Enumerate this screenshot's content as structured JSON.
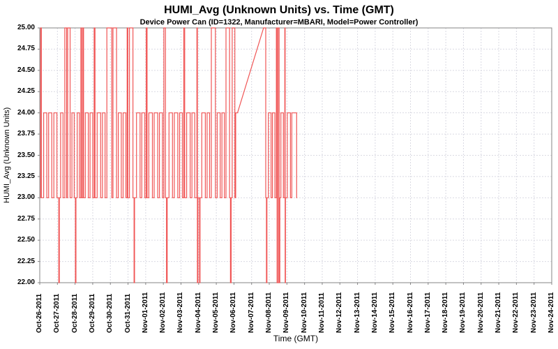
{
  "chart_data": {
    "type": "line",
    "title": "HUMI_Avg (Unknown Units) vs. Time (GMT)",
    "subtitle": "Device Power Can (ID=1322, Manufacturer=MBARI, Model=Power Controller)",
    "xlabel": "Time (GMT)",
    "ylabel": "HUMI_Avg (Unknown Units)",
    "legend": "none",
    "grid": {
      "on": true,
      "color": "#d9d9e2",
      "dash": "2,2"
    },
    "frame_color": "#848484",
    "tick_color": "#848484",
    "text_color": "#000000",
    "background": "#ffffff",
    "ylim": [
      22,
      25
    ],
    "x_range_days": [
      0,
      29
    ],
    "y_tick_values": [
      22,
      22.25,
      22.5,
      22.75,
      23,
      23.25,
      23.5,
      23.75,
      24,
      24.25,
      24.5,
      24.75,
      25
    ],
    "y_tick_labels": [
      "22.00",
      "22.25",
      "22.50",
      "22.75",
      "23.00",
      "23.25",
      "23.50",
      "23.75",
      "24.00",
      "24.25",
      "24.50",
      "24.75",
      "25.00"
    ],
    "x_ticks": [
      "Oct-26-2011",
      "Oct-27-2011",
      "Oct-28-2011",
      "Oct-29-2011",
      "Oct-30-2011",
      "Oct-31-2011",
      "Nov-01-2011",
      "Nov-02-2011",
      "Nov-03-2011",
      "Nov-04-2011",
      "Nov-05-2011",
      "Nov-06-2011",
      "Nov-07-2011",
      "Nov-08-2011",
      "Nov-09-2011",
      "Nov-10-2011",
      "Nov-11-2011",
      "Nov-12-2011",
      "Nov-13-2011",
      "Nov-14-2011",
      "Nov-15-2011",
      "Nov-16-2011",
      "Nov-17-2011",
      "Nov-18-2011",
      "Nov-19-2011",
      "Nov-20-2011",
      "Nov-21-2011",
      "Nov-22-2011",
      "Nov-23-2011",
      "Nov-24-2011"
    ],
    "series": [
      {
        "name": "HUMI_Avg",
        "color": "#f05555",
        "points": [
          [
            0.03,
            23
          ],
          [
            0.05,
            23
          ],
          [
            0.05,
            25
          ],
          [
            0.09,
            25
          ],
          [
            0.09,
            23
          ],
          [
            0.22,
            23
          ],
          [
            0.22,
            24
          ],
          [
            0.4,
            24
          ],
          [
            0.4,
            23
          ],
          [
            0.5,
            23
          ],
          [
            0.5,
            24
          ],
          [
            0.68,
            24
          ],
          [
            0.68,
            23
          ],
          [
            0.8,
            23
          ],
          [
            0.8,
            24
          ],
          [
            0.97,
            24
          ],
          [
            0.97,
            23
          ],
          [
            1.08,
            23
          ],
          [
            1.08,
            22
          ],
          [
            1.11,
            22
          ],
          [
            1.11,
            23
          ],
          [
            1.18,
            23
          ],
          [
            1.18,
            24
          ],
          [
            1.32,
            24
          ],
          [
            1.32,
            23
          ],
          [
            1.42,
            23
          ],
          [
            1.42,
            25
          ],
          [
            1.52,
            25
          ],
          [
            1.52,
            23
          ],
          [
            1.58,
            23
          ],
          [
            1.58,
            25
          ],
          [
            1.72,
            25
          ],
          [
            1.72,
            23
          ],
          [
            1.82,
            23
          ],
          [
            1.82,
            24
          ],
          [
            1.95,
            24
          ],
          [
            1.95,
            23
          ],
          [
            2.02,
            23
          ],
          [
            2.02,
            22
          ],
          [
            2.05,
            22
          ],
          [
            2.05,
            23
          ],
          [
            2.12,
            23
          ],
          [
            2.12,
            24
          ],
          [
            2.25,
            24
          ],
          [
            2.25,
            23
          ],
          [
            2.33,
            23
          ],
          [
            2.33,
            25
          ],
          [
            2.37,
            25
          ],
          [
            2.37,
            23
          ],
          [
            2.44,
            23
          ],
          [
            2.44,
            25
          ],
          [
            2.48,
            25
          ],
          [
            2.48,
            23
          ],
          [
            2.58,
            23
          ],
          [
            2.58,
            24
          ],
          [
            2.75,
            24
          ],
          [
            2.75,
            23
          ],
          [
            2.85,
            23
          ],
          [
            2.85,
            24
          ],
          [
            3.0,
            24
          ],
          [
            3.0,
            23
          ],
          [
            3.08,
            23
          ],
          [
            3.08,
            25
          ],
          [
            3.13,
            25
          ],
          [
            3.13,
            23
          ],
          [
            3.25,
            23
          ],
          [
            3.25,
            24
          ],
          [
            3.45,
            24
          ],
          [
            3.45,
            23
          ],
          [
            3.55,
            23
          ],
          [
            3.55,
            24
          ],
          [
            3.7,
            24
          ],
          [
            3.7,
            23
          ],
          [
            3.8,
            23
          ],
          [
            3.8,
            25
          ],
          [
            4.08,
            25
          ],
          [
            4.08,
            23
          ],
          [
            4.15,
            23
          ],
          [
            4.15,
            25
          ],
          [
            4.35,
            25
          ],
          [
            4.35,
            23
          ],
          [
            4.45,
            23
          ],
          [
            4.45,
            24
          ],
          [
            4.62,
            24
          ],
          [
            4.62,
            23
          ],
          [
            4.72,
            23
          ],
          [
            4.72,
            24
          ],
          [
            4.88,
            24
          ],
          [
            4.88,
            23
          ],
          [
            4.95,
            23
          ],
          [
            4.95,
            25
          ],
          [
            4.99,
            25
          ],
          [
            4.99,
            23
          ],
          [
            5.08,
            23
          ],
          [
            5.08,
            25
          ],
          [
            5.28,
            25
          ],
          [
            5.28,
            23
          ],
          [
            5.34,
            23
          ],
          [
            5.34,
            22
          ],
          [
            5.37,
            22
          ],
          [
            5.37,
            23
          ],
          [
            5.48,
            23
          ],
          [
            5.48,
            24
          ],
          [
            5.68,
            24
          ],
          [
            5.68,
            23
          ],
          [
            5.78,
            23
          ],
          [
            5.78,
            24
          ],
          [
            5.95,
            24
          ],
          [
            5.95,
            23
          ],
          [
            6.03,
            23
          ],
          [
            6.03,
            25
          ],
          [
            6.08,
            25
          ],
          [
            6.08,
            23
          ],
          [
            6.18,
            23
          ],
          [
            6.18,
            24
          ],
          [
            6.38,
            24
          ],
          [
            6.38,
            23
          ],
          [
            6.48,
            23
          ],
          [
            6.48,
            24
          ],
          [
            6.68,
            24
          ],
          [
            6.68,
            23
          ],
          [
            6.78,
            23
          ],
          [
            6.78,
            24
          ],
          [
            6.95,
            24
          ],
          [
            6.95,
            23
          ],
          [
            7.03,
            23
          ],
          [
            7.03,
            25
          ],
          [
            7.12,
            25
          ],
          [
            7.12,
            23
          ],
          [
            7.18,
            23
          ],
          [
            7.18,
            22
          ],
          [
            7.22,
            22
          ],
          [
            7.22,
            23
          ],
          [
            7.32,
            23
          ],
          [
            7.32,
            24
          ],
          [
            7.52,
            24
          ],
          [
            7.52,
            23
          ],
          [
            7.62,
            23
          ],
          [
            7.62,
            24
          ],
          [
            7.82,
            24
          ],
          [
            7.82,
            23
          ],
          [
            7.92,
            23
          ],
          [
            7.92,
            24
          ],
          [
            8.08,
            24
          ],
          [
            8.08,
            23
          ],
          [
            8.16,
            23
          ],
          [
            8.16,
            25
          ],
          [
            8.21,
            25
          ],
          [
            8.21,
            23
          ],
          [
            8.32,
            23
          ],
          [
            8.32,
            24
          ],
          [
            8.52,
            24
          ],
          [
            8.52,
            23
          ],
          [
            8.62,
            23
          ],
          [
            8.62,
            24
          ],
          [
            8.78,
            24
          ],
          [
            8.78,
            23
          ],
          [
            8.9,
            23
          ],
          [
            8.9,
            25
          ],
          [
            8.93,
            25
          ],
          [
            8.93,
            22
          ],
          [
            8.96,
            22
          ],
          [
            8.96,
            23
          ],
          [
            9.05,
            23
          ],
          [
            9.05,
            22
          ],
          [
            9.08,
            22
          ],
          [
            9.08,
            23
          ],
          [
            9.18,
            23
          ],
          [
            9.18,
            24
          ],
          [
            9.38,
            24
          ],
          [
            9.38,
            23
          ],
          [
            9.48,
            23
          ],
          [
            9.48,
            24
          ],
          [
            9.62,
            24
          ],
          [
            9.62,
            23
          ],
          [
            9.72,
            23
          ],
          [
            9.72,
            25
          ],
          [
            9.95,
            25
          ],
          [
            9.95,
            23
          ],
          [
            10.05,
            23
          ],
          [
            10.05,
            24
          ],
          [
            10.22,
            24
          ],
          [
            10.22,
            23
          ],
          [
            10.32,
            23
          ],
          [
            10.32,
            24
          ],
          [
            10.46,
            24
          ],
          [
            10.46,
            23
          ],
          [
            10.55,
            23
          ],
          [
            10.55,
            25
          ],
          [
            10.75,
            25
          ],
          [
            10.75,
            23
          ],
          [
            10.8,
            23
          ],
          [
            10.8,
            22
          ],
          [
            10.84,
            22
          ],
          [
            10.84,
            23
          ],
          [
            10.9,
            23
          ],
          [
            10.9,
            25
          ],
          [
            11.05,
            25
          ],
          [
            11.05,
            23
          ],
          [
            11.1,
            23
          ],
          [
            11.1,
            24
          ],
          [
            11.2,
            24
          ],
          [
            12.68,
            25
          ],
          [
            12.8,
            25
          ],
          [
            12.8,
            23
          ],
          [
            12.84,
            23
          ],
          [
            12.84,
            22
          ],
          [
            12.87,
            22
          ],
          [
            12.87,
            23
          ],
          [
            12.95,
            23
          ],
          [
            12.95,
            24
          ],
          [
            13.1,
            24
          ],
          [
            13.1,
            23
          ],
          [
            13.18,
            23
          ],
          [
            13.18,
            24
          ],
          [
            13.32,
            24
          ],
          [
            13.32,
            23
          ],
          [
            13.4,
            23
          ],
          [
            13.4,
            25
          ],
          [
            13.44,
            25
          ],
          [
            13.44,
            22
          ],
          [
            13.5,
            22
          ],
          [
            13.5,
            25
          ],
          [
            13.56,
            25
          ],
          [
            13.56,
            22
          ],
          [
            13.6,
            22
          ],
          [
            13.6,
            23
          ],
          [
            13.66,
            23
          ],
          [
            13.66,
            24
          ],
          [
            13.8,
            24
          ],
          [
            13.8,
            23
          ],
          [
            13.88,
            23
          ],
          [
            13.88,
            25
          ],
          [
            13.9,
            25
          ],
          [
            13.9,
            22
          ],
          [
            13.92,
            22
          ],
          [
            13.92,
            23
          ],
          [
            14.02,
            23
          ],
          [
            14.02,
            24
          ],
          [
            14.2,
            24
          ],
          [
            14.2,
            23
          ],
          [
            14.28,
            23
          ],
          [
            14.28,
            24
          ],
          [
            14.55,
            24
          ],
          [
            14.55,
            23
          ],
          [
            14.58,
            23
          ]
        ]
      }
    ]
  }
}
